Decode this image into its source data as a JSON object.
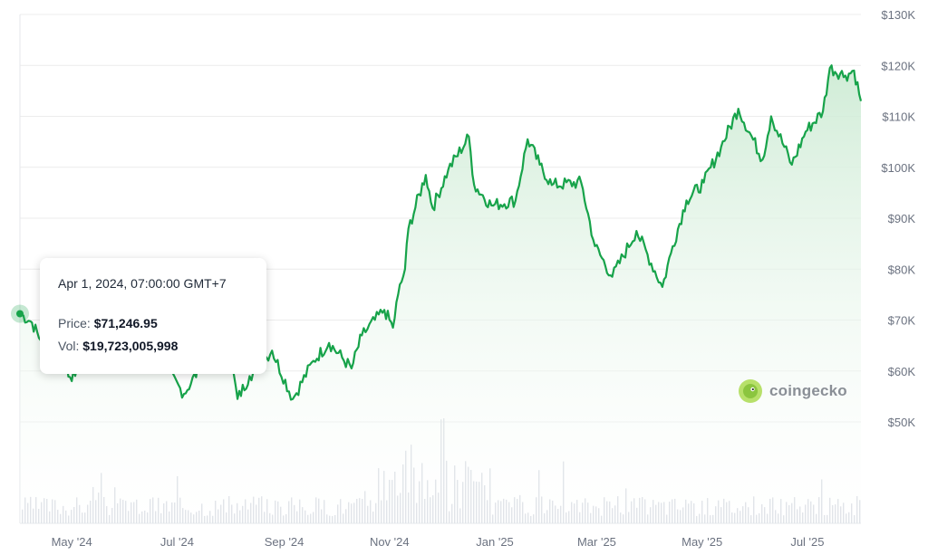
{
  "tooltip": {
    "date": "Apr 1, 2024, 07:00:00 GMT+7",
    "price_label": "Price:",
    "price_value": "$71,246.95",
    "vol_label": "Vol:",
    "vol_value": "$19,723,005,998"
  },
  "brand": {
    "name": "coingecko",
    "icon": "gecko-logo-icon"
  },
  "colors": {
    "line": "#17a34a",
    "area_top": "#cdebd4",
    "grid": "#ececec",
    "volume": "#d9dde3",
    "label": "#6b7280"
  },
  "chart_data": {
    "type": "line",
    "x_unit": "date",
    "y_ticks": [
      "$50K",
      "$60K",
      "$70K",
      "$80K",
      "$90K",
      "$100K",
      "$110K",
      "$120K",
      "$130K"
    ],
    "x_ticks": [
      "May '24",
      "Jul '24",
      "Sep '24",
      "Nov '24",
      "Jan '25",
      "Mar '25",
      "May '25",
      "Jul '25"
    ],
    "ylim": [
      50000,
      130000
    ],
    "grid": true,
    "series": [
      {
        "values": [
          [
            "2024-04-01",
            71247
          ],
          [
            "2024-04-08",
            69500
          ],
          [
            "2024-04-13",
            66000
          ],
          [
            "2024-04-22",
            66500
          ],
          [
            "2024-05-01",
            58000
          ],
          [
            "2024-05-07",
            63500
          ],
          [
            "2024-05-21",
            70500
          ],
          [
            "2024-06-05",
            70000
          ],
          [
            "2024-06-15",
            66000
          ],
          [
            "2024-06-24",
            60500
          ],
          [
            "2024-07-05",
            55500
          ],
          [
            "2024-07-14",
            60500
          ],
          [
            "2024-07-22",
            67500
          ],
          [
            "2024-07-31",
            64500
          ],
          [
            "2024-08-05",
            54500
          ],
          [
            "2024-08-12",
            59000
          ],
          [
            "2024-08-25",
            64000
          ],
          [
            "2024-09-06",
            54500
          ],
          [
            "2024-09-18",
            62000
          ],
          [
            "2024-09-27",
            65500
          ],
          [
            "2024-10-10",
            60500
          ],
          [
            "2024-10-16",
            67000
          ],
          [
            "2024-10-29",
            72000
          ],
          [
            "2024-11-03",
            68500
          ],
          [
            "2024-11-06",
            75000
          ],
          [
            "2024-11-10",
            80000
          ],
          [
            "2024-11-12",
            88000
          ],
          [
            "2024-11-22",
            98500
          ],
          [
            "2024-11-26",
            92000
          ],
          [
            "2024-12-05",
            99500
          ],
          [
            "2024-12-17",
            106000
          ],
          [
            "2024-12-20",
            96500
          ],
          [
            "2024-12-30",
            92500
          ],
          [
            "2025-01-13",
            93500
          ],
          [
            "2025-01-20",
            105500
          ],
          [
            "2025-01-27",
            100500
          ],
          [
            "2025-02-03",
            96500
          ],
          [
            "2025-02-20",
            97000
          ],
          [
            "2025-02-28",
            84500
          ],
          [
            "2025-03-10",
            78500
          ],
          [
            "2025-03-24",
            87500
          ],
          [
            "2025-04-08",
            76500
          ],
          [
            "2025-04-14",
            84500
          ],
          [
            "2025-04-22",
            93500
          ],
          [
            "2025-05-02",
            97000
          ],
          [
            "2025-05-12",
            104000
          ],
          [
            "2025-05-22",
            111500
          ],
          [
            "2025-06-05",
            101500
          ],
          [
            "2025-06-10",
            110000
          ],
          [
            "2025-06-22",
            100500
          ],
          [
            "2025-06-30",
            107000
          ],
          [
            "2025-07-10",
            111000
          ],
          [
            "2025-07-14",
            119500
          ],
          [
            "2025-07-23",
            118000
          ],
          [
            "2025-07-28",
            119000
          ],
          [
            "2025-08-01",
            113000
          ]
        ]
      }
    ],
    "volume_note": "volume bars along bottom"
  }
}
